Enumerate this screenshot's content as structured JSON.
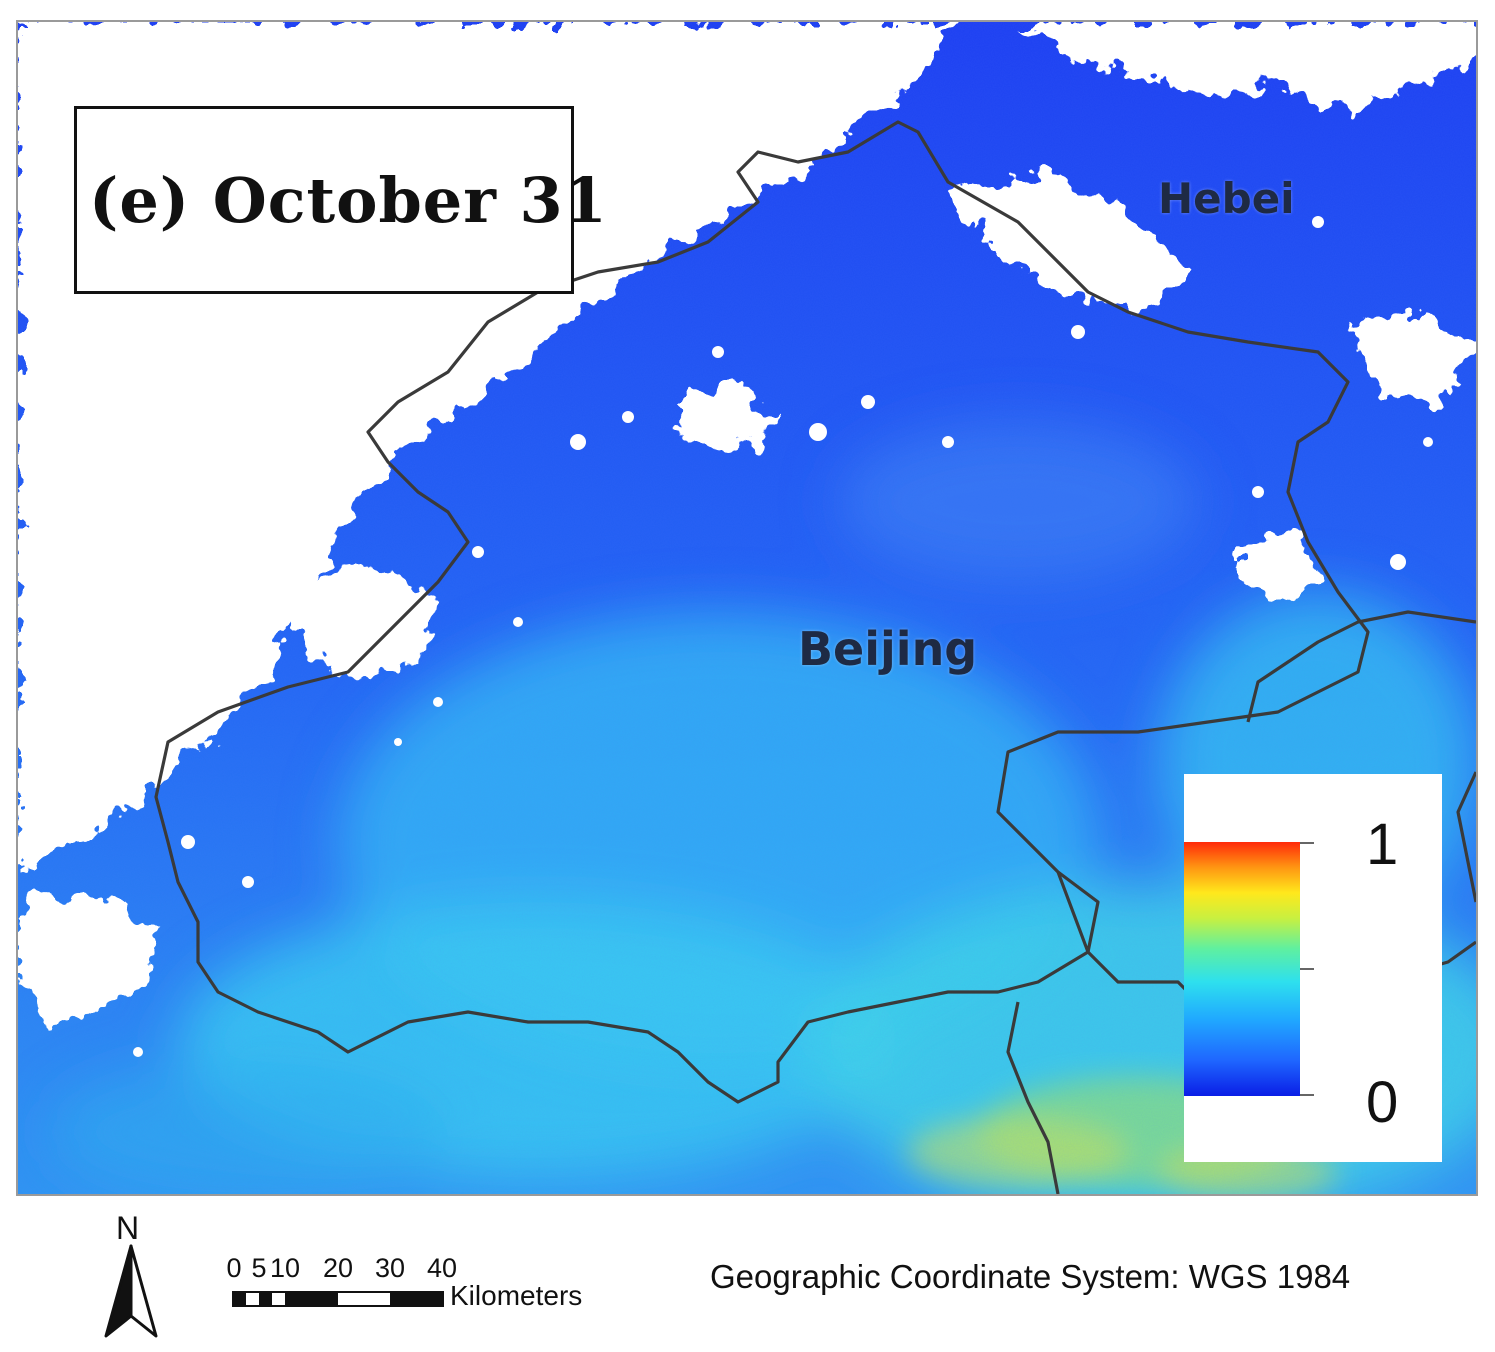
{
  "map": {
    "panel_title": "(e) October 31",
    "labels": {
      "beijing": "Beijing",
      "hebei": "Hebei"
    },
    "colors": {
      "cloud": "#ffffff",
      "low_value": "#1a3cf0",
      "mid_value": "#2ab8f5",
      "boundary": "#3a3a3a"
    }
  },
  "legend": {
    "max_label": "1",
    "min_label": "0",
    "range": [
      0,
      1
    ],
    "colormap": "jet"
  },
  "north_arrow": {
    "label": "N"
  },
  "scale_bar": {
    "tick_labels": [
      "0",
      "5",
      "10",
      "20",
      "30",
      "40"
    ],
    "unit": "Kilometers"
  },
  "footer": {
    "coordinate_system": "Geographic Coordinate System: WGS 1984"
  }
}
